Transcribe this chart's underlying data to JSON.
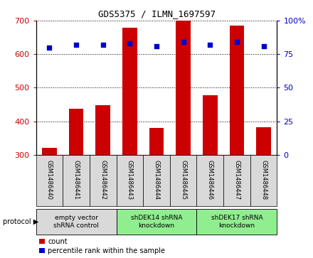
{
  "title": "GDS5375 / ILMN_1697597",
  "samples": [
    "GSM1486440",
    "GSM1486441",
    "GSM1486442",
    "GSM1486443",
    "GSM1486444",
    "GSM1486445",
    "GSM1486446",
    "GSM1486447",
    "GSM1486448"
  ],
  "counts": [
    320,
    438,
    448,
    678,
    380,
    700,
    478,
    685,
    382
  ],
  "percentiles": [
    80,
    82,
    82,
    83,
    81,
    84,
    82,
    84,
    81
  ],
  "ylim_left": [
    300,
    700
  ],
  "ylim_right": [
    0,
    100
  ],
  "yticks_left": [
    300,
    400,
    500,
    600,
    700
  ],
  "yticks_right": [
    0,
    25,
    50,
    75,
    100
  ],
  "groups": [
    {
      "label": "empty vector\nshRNA control",
      "samples": [
        0,
        1,
        2
      ],
      "color": "#d9d9d9"
    },
    {
      "label": "shDEK14 shRNA\nknockdown",
      "samples": [
        3,
        4,
        5
      ],
      "color": "#90ee90"
    },
    {
      "label": "shDEK17 shRNA\nknockdown",
      "samples": [
        6,
        7,
        8
      ],
      "color": "#90ee90"
    }
  ],
  "bar_color": "#cc0000",
  "dot_color": "#0000cc",
  "bar_width": 0.55,
  "tick_label_bg": "#d9d9d9",
  "left_axis_color": "#cc0000",
  "right_axis_color": "#0000cc",
  "title_font": "monospace",
  "title_fontsize": 9
}
